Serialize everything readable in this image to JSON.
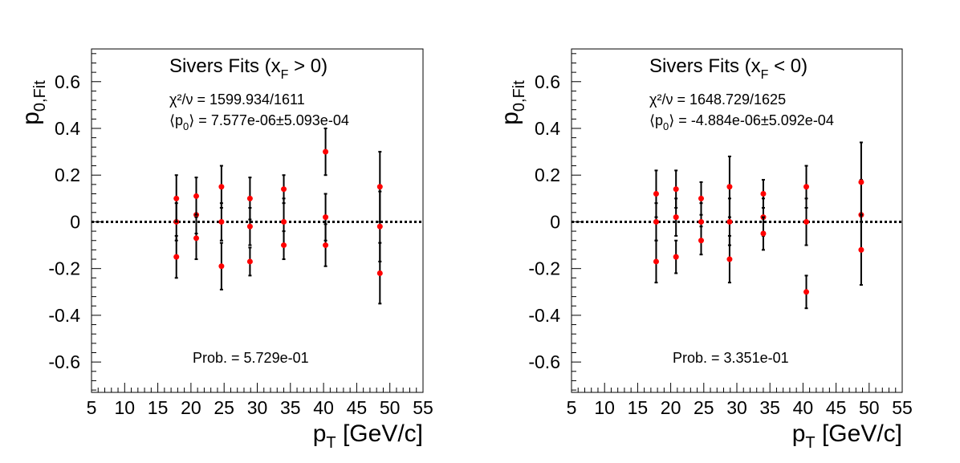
{
  "chart_data": [
    {
      "type": "scatter",
      "title": "Sivers Fits (x",
      "title_sub": "F",
      "title_tail": " > 0)",
      "chi2_label": "χ²/ν = 1599.934/1611",
      "mean_label_head": "⟨p",
      "mean_label_sub": "0",
      "mean_label_tail": "⟩ = 7.577e-06±5.093e-04",
      "prob_label": "Prob. = 5.729e-01",
      "ylabel": "p",
      "ylabel_sub": "0,Fit",
      "xlabel": "p",
      "xlabel_sub": "T",
      "xlabel_tail": " [GeV/c]",
      "xlim": [
        5,
        55
      ],
      "ylim": [
        -0.73,
        0.74
      ],
      "xticks": [
        "5",
        "10",
        "15",
        "20",
        "25",
        "30",
        "35",
        "40",
        "45",
        "50",
        "55"
      ],
      "yticks": [
        "-0.6",
        "-0.4",
        "-0.2",
        "0",
        "0.2",
        "0.4",
        "0.6"
      ],
      "reference_line_y": 0,
      "series": [
        {
          "points": [
            {
              "x": 17.8,
              "y": 0.0,
              "yerr": 0.08
            },
            {
              "x": 17.8,
              "y": -0.15,
              "yerr": 0.09
            },
            {
              "x": 17.8,
              "y": 0.1,
              "yerr": 0.1
            },
            {
              "x": 20.8,
              "y": 0.03,
              "yerr": 0.08
            },
            {
              "x": 20.8,
              "y": 0.11,
              "yerr": 0.08
            },
            {
              "x": 20.8,
              "y": -0.07,
              "yerr": 0.09
            },
            {
              "x": 24.6,
              "y": 0.0,
              "yerr": 0.08
            },
            {
              "x": 24.6,
              "y": -0.19,
              "yerr": 0.1
            },
            {
              "x": 24.6,
              "y": 0.15,
              "yerr": 0.09
            },
            {
              "x": 28.9,
              "y": -0.02,
              "yerr": 0.08
            },
            {
              "x": 28.9,
              "y": -0.17,
              "yerr": 0.06
            },
            {
              "x": 28.9,
              "y": 0.1,
              "yerr": 0.09
            },
            {
              "x": 34.0,
              "y": 0.0,
              "yerr": 0.1
            },
            {
              "x": 34.0,
              "y": 0.14,
              "yerr": 0.06
            },
            {
              "x": 34.0,
              "y": -0.1,
              "yerr": 0.06
            },
            {
              "x": 40.3,
              "y": 0.02,
              "yerr": 0.1
            },
            {
              "x": 40.3,
              "y": 0.3,
              "yerr": 0.1
            },
            {
              "x": 40.3,
              "y": -0.1,
              "yerr": 0.09
            },
            {
              "x": 48.5,
              "y": -0.02,
              "yerr": 0.15
            },
            {
              "x": 48.5,
              "y": -0.22,
              "yerr": 0.13
            },
            {
              "x": 48.5,
              "y": 0.15,
              "yerr": 0.15
            }
          ]
        }
      ]
    },
    {
      "type": "scatter",
      "title": "Sivers Fits (x",
      "title_sub": "F",
      "title_tail": " < 0)",
      "chi2_label": "χ²/ν = 1648.729/1625",
      "mean_label_head": "⟨p",
      "mean_label_sub": "0",
      "mean_label_tail": "⟩ = -4.884e-06±5.092e-04",
      "prob_label": "Prob. = 3.351e-01",
      "ylabel": "p",
      "ylabel_sub": "0,Fit",
      "xlabel": "p",
      "xlabel_sub": "T",
      "xlabel_tail": " [GeV/c]",
      "xlim": [
        5,
        55
      ],
      "ylim": [
        -0.73,
        0.74
      ],
      "xticks": [
        "5",
        "10",
        "15",
        "20",
        "25",
        "30",
        "35",
        "40",
        "45",
        "50",
        "55"
      ],
      "yticks": [
        "-0.6",
        "-0.4",
        "-0.2",
        "0",
        "0.2",
        "0.4",
        "0.6"
      ],
      "reference_line_y": 0,
      "series": [
        {
          "points": [
            {
              "x": 17.8,
              "y": 0.0,
              "yerr": 0.08
            },
            {
              "x": 17.8,
              "y": -0.17,
              "yerr": 0.09
            },
            {
              "x": 17.8,
              "y": 0.12,
              "yerr": 0.1
            },
            {
              "x": 20.8,
              "y": 0.02,
              "yerr": 0.08
            },
            {
              "x": 20.8,
              "y": 0.14,
              "yerr": 0.08
            },
            {
              "x": 20.8,
              "y": -0.15,
              "yerr": 0.07
            },
            {
              "x": 24.6,
              "y": 0.0,
              "yerr": 0.08
            },
            {
              "x": 24.6,
              "y": 0.1,
              "yerr": 0.07
            },
            {
              "x": 24.6,
              "y": -0.08,
              "yerr": 0.06
            },
            {
              "x": 28.9,
              "y": 0.0,
              "yerr": 0.1
            },
            {
              "x": 28.9,
              "y": -0.16,
              "yerr": 0.1
            },
            {
              "x": 28.9,
              "y": 0.15,
              "yerr": 0.13
            },
            {
              "x": 34.0,
              "y": 0.02,
              "yerr": 0.08
            },
            {
              "x": 34.0,
              "y": 0.12,
              "yerr": 0.06
            },
            {
              "x": 34.0,
              "y": -0.05,
              "yerr": 0.07
            },
            {
              "x": 40.5,
              "y": 0.0,
              "yerr": 0.1
            },
            {
              "x": 40.5,
              "y": -0.3,
              "yerr": 0.07
            },
            {
              "x": 40.5,
              "y": 0.15,
              "yerr": 0.09
            },
            {
              "x": 48.8,
              "y": 0.03,
              "yerr": 0.15
            },
            {
              "x": 48.8,
              "y": 0.17,
              "yerr": 0.17
            },
            {
              "x": 48.8,
              "y": -0.12,
              "yerr": 0.15
            }
          ]
        }
      ]
    }
  ],
  "colors": {
    "marker": "#ff0000",
    "error_bar": "#000000",
    "frame": "#000000"
  }
}
